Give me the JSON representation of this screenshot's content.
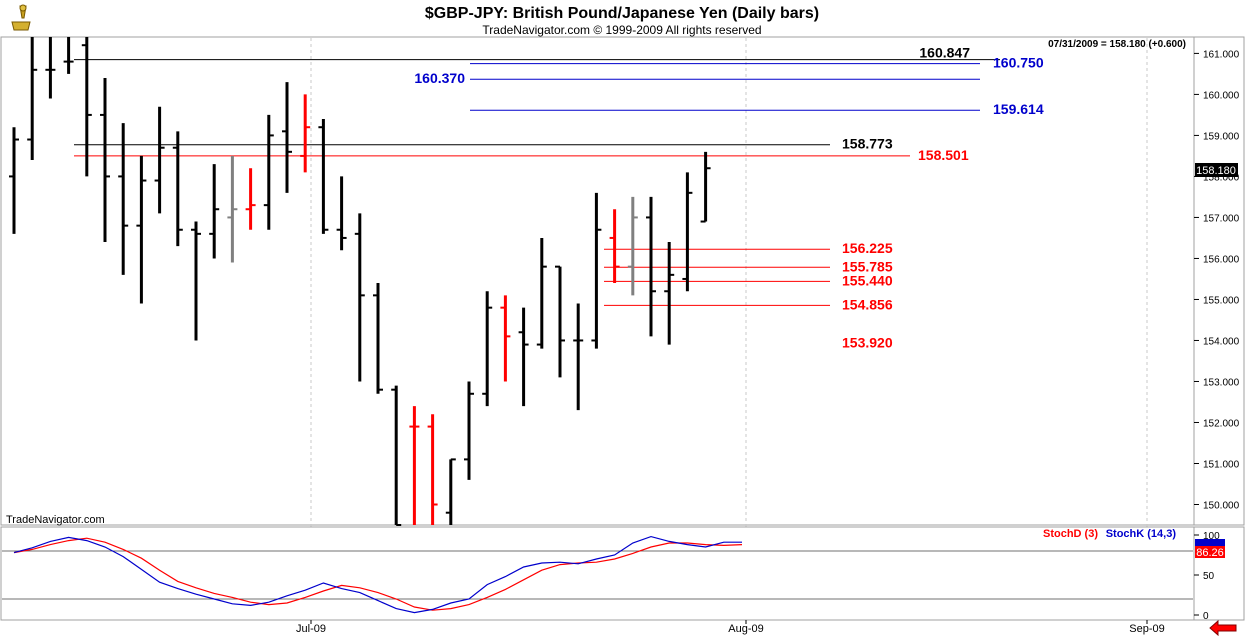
{
  "header": {
    "title": "$GBP-JPY:  British Pound/Japanese Yen  (Daily bars)",
    "copyright": "TradeNavigator.com © 1999-2009 All rights reserved",
    "quote": "07/31/2009 = 158.180 (+0.600)",
    "watermark": "TradeNavigator.com"
  },
  "colors": {
    "up": "#000000",
    "down": "#ff0000",
    "neutral": "#808080",
    "blue": "#0000cc",
    "red": "#ff0000"
  },
  "chart_data": {
    "type": "ohlc",
    "title": "$GBP-JPY:  British Pound/Japanese Yen  (Daily bars)",
    "y_axis": {
      "min": 149.5,
      "max": 161.4,
      "ticks": [
        150,
        151,
        152,
        153,
        154,
        155,
        156,
        157,
        158,
        159,
        160,
        161
      ],
      "tick_labels": [
        "150.000",
        "151.000",
        "152.000",
        "153.000",
        "154.000",
        "155.000",
        "156.000",
        "157.000",
        "158.000",
        "159.000",
        "160.000",
        "161.000"
      ]
    },
    "x_labels": [
      "Jul-09",
      "Aug-09",
      "Sep-09"
    ],
    "last_price_label": "158.180",
    "bars": [
      {
        "o": 158.0,
        "h": 159.2,
        "l": 156.6,
        "c": 158.9,
        "color": "up"
      },
      {
        "o": 158.9,
        "h": 161.4,
        "l": 158.4,
        "c": 160.6,
        "color": "up"
      },
      {
        "o": 160.6,
        "h": 161.4,
        "l": 159.9,
        "c": 160.6,
        "color": "up"
      },
      {
        "o": 160.8,
        "h": 161.4,
        "l": 160.5,
        "c": 160.8,
        "color": "up"
      },
      {
        "o": 161.2,
        "h": 161.4,
        "l": 158.0,
        "c": 159.5,
        "color": "up"
      },
      {
        "o": 159.5,
        "h": 160.4,
        "l": 156.4,
        "c": 158.0,
        "color": "up"
      },
      {
        "o": 158.0,
        "h": 159.3,
        "l": 155.6,
        "c": 156.8,
        "color": "up"
      },
      {
        "o": 156.8,
        "h": 158.5,
        "l": 154.9,
        "c": 157.9,
        "color": "up"
      },
      {
        "o": 157.9,
        "h": 159.7,
        "l": 157.1,
        "c": 158.7,
        "color": "up"
      },
      {
        "o": 158.7,
        "h": 159.1,
        "l": 156.3,
        "c": 156.7,
        "color": "up"
      },
      {
        "o": 156.7,
        "h": 156.9,
        "l": 154.0,
        "c": 156.6,
        "color": "up"
      },
      {
        "o": 156.6,
        "h": 158.3,
        "l": 156.0,
        "c": 157.2,
        "color": "up"
      },
      {
        "o": 157.0,
        "h": 158.5,
        "l": 155.9,
        "c": 157.2,
        "color": "neutral"
      },
      {
        "o": 157.2,
        "h": 158.2,
        "l": 156.7,
        "c": 157.3,
        "color": "down"
      },
      {
        "o": 157.3,
        "h": 159.5,
        "l": 156.7,
        "c": 159.0,
        "color": "up"
      },
      {
        "o": 159.1,
        "h": 160.3,
        "l": 157.6,
        "c": 158.6,
        "color": "up"
      },
      {
        "o": 158.5,
        "h": 160.0,
        "l": 158.1,
        "c": 159.2,
        "color": "down"
      },
      {
        "o": 159.2,
        "h": 159.4,
        "l": 156.6,
        "c": 156.7,
        "color": "up"
      },
      {
        "o": 156.7,
        "h": 158.0,
        "l": 156.2,
        "c": 156.5,
        "color": "up"
      },
      {
        "o": 156.6,
        "h": 157.1,
        "l": 153.0,
        "c": 155.1,
        "color": "up"
      },
      {
        "o": 155.1,
        "h": 155.4,
        "l": 152.7,
        "c": 152.8,
        "color": "up"
      },
      {
        "o": 152.8,
        "h": 152.9,
        "l": 149.5,
        "c": 149.5,
        "color": "up"
      },
      {
        "o": 151.9,
        "h": 152.4,
        "l": 149.5,
        "c": 151.9,
        "color": "down"
      },
      {
        "o": 151.9,
        "h": 152.2,
        "l": 149.5,
        "c": 150.0,
        "color": "down"
      },
      {
        "o": 149.8,
        "h": 151.1,
        "l": 149.5,
        "c": 151.1,
        "color": "up"
      },
      {
        "o": 151.1,
        "h": 153.0,
        "l": 150.6,
        "c": 152.7,
        "color": "up"
      },
      {
        "o": 152.7,
        "h": 155.2,
        "l": 152.4,
        "c": 154.8,
        "color": "up"
      },
      {
        "o": 154.8,
        "h": 155.1,
        "l": 153.0,
        "c": 154.1,
        "color": "down"
      },
      {
        "o": 154.2,
        "h": 154.8,
        "l": 152.4,
        "c": 153.9,
        "color": "up"
      },
      {
        "o": 153.9,
        "h": 156.5,
        "l": 153.8,
        "c": 155.8,
        "color": "up"
      },
      {
        "o": 155.8,
        "h": 155.8,
        "l": 153.1,
        "c": 154.0,
        "color": "up"
      },
      {
        "o": 154.0,
        "h": 154.9,
        "l": 152.3,
        "c": 154.0,
        "color": "up"
      },
      {
        "o": 154.0,
        "h": 157.6,
        "l": 153.8,
        "c": 156.7,
        "color": "up"
      },
      {
        "o": 156.5,
        "h": 157.2,
        "l": 155.4,
        "c": 155.8,
        "color": "down"
      },
      {
        "o": 155.8,
        "h": 157.5,
        "l": 155.1,
        "c": 157.0,
        "color": "neutral"
      },
      {
        "o": 157.0,
        "h": 157.5,
        "l": 154.1,
        "c": 155.2,
        "color": "up"
      },
      {
        "o": 155.2,
        "h": 156.4,
        "l": 153.9,
        "c": 155.6,
        "color": "up"
      },
      {
        "o": 155.5,
        "h": 158.1,
        "l": 155.2,
        "c": 157.6,
        "color": "up"
      },
      {
        "o": 156.9,
        "h": 158.6,
        "l": 156.9,
        "c": 158.2,
        "color": "up"
      }
    ],
    "levels": [
      {
        "label": "160.847",
        "value": 160.847,
        "color": "black"
      },
      {
        "label": "160.750",
        "value": 160.75,
        "color": "blue"
      },
      {
        "label": "160.370",
        "value": 160.37,
        "color": "blue"
      },
      {
        "label": "159.614",
        "value": 159.614,
        "color": "blue"
      },
      {
        "label": "158.773",
        "value": 158.773,
        "color": "black"
      },
      {
        "label": "158.501",
        "value": 158.501,
        "color": "red"
      },
      {
        "label": "156.225",
        "value": 156.225,
        "color": "red"
      },
      {
        "label": "155.785",
        "value": 155.785,
        "color": "red"
      },
      {
        "label": "155.440",
        "value": 155.44,
        "color": "red"
      },
      {
        "label": "154.856",
        "value": 154.856,
        "color": "red"
      },
      {
        "label": "153.920",
        "value": 153.92,
        "color": "red"
      }
    ],
    "stochastic": {
      "legend": [
        {
          "name": "StochD (3)",
          "color": "red"
        },
        {
          "name": "StochK (14,3)",
          "color": "blue"
        }
      ],
      "y_axis": {
        "min": 0,
        "max": 100,
        "ticks": [
          0,
          50,
          100
        ],
        "tick_labels": [
          "0",
          "50",
          "100"
        ]
      },
      "last_value_label": "86.26",
      "stochD": [
        78,
        82,
        88,
        93,
        96,
        91,
        82,
        71,
        56,
        42,
        34,
        27,
        22,
        16,
        13,
        15,
        22,
        30,
        37,
        34,
        28,
        20,
        10,
        6,
        8,
        13,
        22,
        32,
        44,
        56,
        63,
        65,
        66,
        70,
        77,
        85,
        90,
        90,
        88,
        87,
        88
      ],
      "stochK": [
        78,
        84,
        92,
        97,
        93,
        85,
        73,
        57,
        41,
        33,
        26,
        20,
        14,
        12,
        16,
        24,
        31,
        40,
        33,
        28,
        18,
        8,
        3,
        7,
        15,
        20,
        38,
        48,
        60,
        65,
        66,
        64,
        70,
        75,
        90,
        98,
        92,
        88,
        85,
        91,
        91
      ]
    }
  }
}
